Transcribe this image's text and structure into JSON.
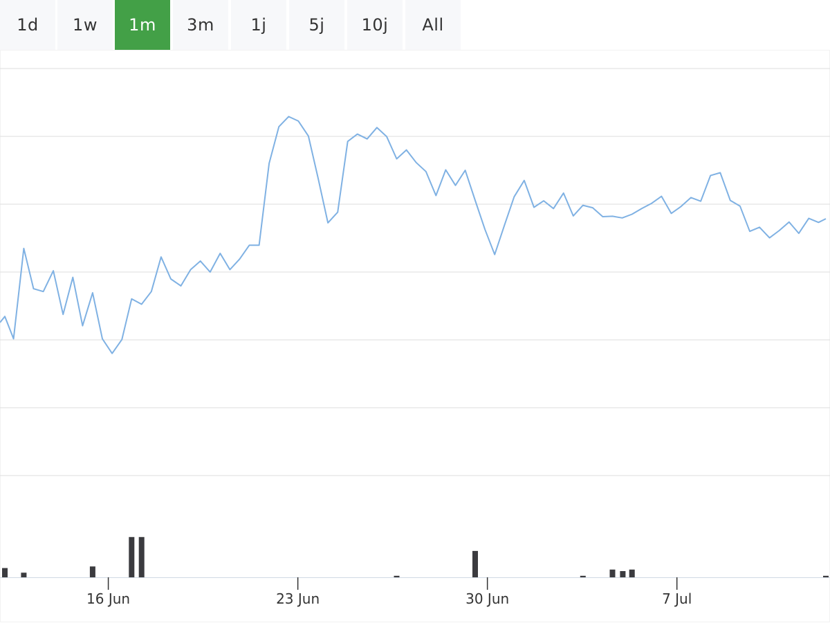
{
  "range_tabs": [
    {
      "label": "1d",
      "active": false
    },
    {
      "label": "1w",
      "active": false
    },
    {
      "label": "1m",
      "active": true
    },
    {
      "label": "3m",
      "active": false
    },
    {
      "label": "1j",
      "active": false
    },
    {
      "label": "5j",
      "active": false
    },
    {
      "label": "10j",
      "active": false
    },
    {
      "label": "All",
      "active": false
    }
  ],
  "colors": {
    "accent": "#43a047",
    "tab_bg": "#f7f8fa",
    "line": "#7fb1e3",
    "volume": "#3b3b3f",
    "grid": "#dddddd"
  },
  "chart_data": [
    {
      "type": "line",
      "title": "",
      "xlabel": "",
      "ylabel": "",
      "x_tick_labels": [
        "16 Jun",
        "23 Jun",
        "30 Jun",
        "7 Jul"
      ],
      "x_tick_days": [
        16,
        23,
        30,
        37
      ],
      "xlim_days": [
        12.0,
        42.5
      ],
      "ylim": [
        0,
        100
      ],
      "grid": true,
      "series": [
        {
          "x_days": [
            12.0,
            12.18,
            12.5,
            12.88,
            13.24,
            13.6,
            13.97,
            14.33,
            14.69,
            15.05,
            15.42,
            15.78,
            16.14,
            16.5,
            16.86,
            17.23,
            17.59,
            17.95,
            18.31,
            18.68,
            19.04,
            19.4,
            19.76,
            20.13,
            20.49,
            20.85,
            21.21,
            21.57,
            21.94,
            22.3,
            22.66,
            23.02,
            23.39,
            23.75,
            24.11,
            24.47,
            24.84,
            25.2,
            25.56,
            25.92,
            26.28,
            26.65,
            27.01,
            27.37,
            27.73,
            28.1,
            28.46,
            28.82,
            29.18,
            29.55,
            29.91,
            30.27,
            30.63,
            30.99,
            31.36,
            31.72,
            32.08,
            32.44,
            32.81,
            33.17,
            33.53,
            33.89,
            34.26,
            34.62,
            34.98,
            35.34,
            35.7,
            36.07,
            36.43,
            36.79,
            37.15,
            37.52,
            37.88,
            38.24,
            38.6,
            38.97,
            39.33,
            39.69,
            40.05,
            40.42,
            40.78,
            41.14,
            41.5,
            41.87,
            42.23,
            42.5
          ],
          "y": [
            37.6,
            39.1,
            33.6,
            55.8,
            45.9,
            45.2,
            50.3,
            39.6,
            48.7,
            36.8,
            44.9,
            33.6,
            30.0,
            33.4,
            43.4,
            42.1,
            45.2,
            53.7,
            48.3,
            46.6,
            50.6,
            52.7,
            50.0,
            54.6,
            50.6,
            53.2,
            56.6,
            56.6,
            76.7,
            85.7,
            88.2,
            87.1,
            83.4,
            73.0,
            62.1,
            64.7,
            82.1,
            83.9,
            82.7,
            85.5,
            83.3,
            77.8,
            80.0,
            76.9,
            74.7,
            68.8,
            75.1,
            71.3,
            75.0,
            67.6,
            60.5,
            54.3,
            61.5,
            68.5,
            72.5,
            65.9,
            67.5,
            65.6,
            69.4,
            63.8,
            66.4,
            65.8,
            63.6,
            63.7,
            63.3,
            64.2,
            65.6,
            66.9,
            68.6,
            64.4,
            66.1,
            68.3,
            67.4,
            73.7,
            74.4,
            67.6,
            66.2,
            60.0,
            61.0,
            58.4,
            60.2,
            62.3,
            59.5,
            63.2,
            62.2,
            63.1
          ]
        }
      ]
    },
    {
      "type": "bar",
      "title": "",
      "xlabel": "",
      "ylabel": "",
      "ylim": [
        0,
        10
      ],
      "x_days": [
        12.18,
        12.88,
        13.6,
        15.42,
        15.78,
        16.86,
        17.23,
        20.13,
        21.57,
        24.11,
        26.65,
        27.01,
        27.73,
        28.46,
        29.55,
        29.91,
        30.63,
        31.36,
        31.72,
        32.08,
        33.17,
        33.53,
        33.89,
        34.62,
        35.0,
        35.34,
        36.43,
        36.79,
        37.52,
        38.24,
        38.6,
        38.97,
        39.69,
        40.05,
        40.78,
        41.14,
        41.5,
        41.87,
        42.5
      ],
      "values": [
        1.2,
        0.6,
        0.0,
        1.4,
        0.0,
        5.2,
        5.2,
        0.0,
        0.0,
        0.0,
        0.2,
        0.0,
        0.0,
        0.0,
        3.4,
        0.0,
        0.0,
        0.0,
        0.0,
        0.0,
        0.0,
        0.2,
        0.0,
        1.0,
        0.8,
        1.0,
        0.0,
        0.0,
        0.0,
        0.0,
        0.0,
        0.0,
        0.0,
        0.0,
        0.0,
        0.0,
        0.0,
        0.0,
        0.2
      ]
    }
  ]
}
